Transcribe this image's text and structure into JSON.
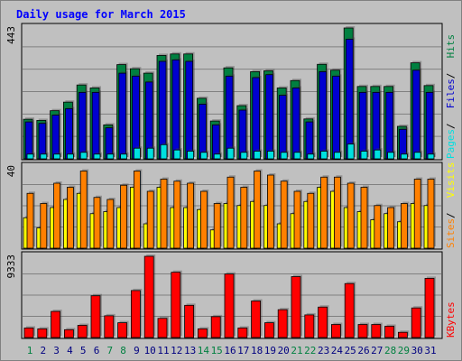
{
  "chart_data": {
    "type": "bar",
    "title": "Daily usage for March 2015",
    "days": [
      "1",
      "2",
      "3",
      "4",
      "5",
      "6",
      "7",
      "8",
      "9",
      "10",
      "11",
      "12",
      "13",
      "14",
      "15",
      "16",
      "17",
      "18",
      "19",
      "20",
      "21",
      "22",
      "23",
      "24",
      "25",
      "26",
      "27",
      "28",
      "29",
      "30",
      "31"
    ],
    "weekend_days": [
      1,
      7,
      8,
      14,
      15,
      21,
      22,
      28,
      29
    ],
    "panels": [
      {
        "id": "hits",
        "max_label": "443",
        "ymax": 443,
        "legend": [
          {
            "label": "Pages",
            "color": "#00e0e0"
          },
          {
            "label": "Files",
            "color": "#0000d0"
          },
          {
            "label": "Hits",
            "color": "#008040"
          }
        ],
        "series": [
          {
            "name": "Hits",
            "color": "#008040",
            "values": [
              134,
              130,
              163,
              192,
              250,
              240,
              115,
              319,
              305,
              290,
              350,
              355,
              355,
              205,
              128,
              308,
              180,
              295,
              298,
              240,
              265,
              135,
              320,
              300,
              443,
              245,
              245,
              245,
              110,
              325,
              248
            ]
          },
          {
            "name": "Files",
            "color": "#0000d0",
            "values": [
              125,
              120,
              148,
              170,
              225,
              225,
              105,
              290,
              280,
              260,
              330,
              335,
              330,
              185,
              115,
              280,
              165,
              275,
              285,
              215,
              240,
              125,
              295,
              280,
              405,
              225,
              225,
              225,
              100,
              300,
              225
            ]
          },
          {
            "name": "Pages",
            "color": "#00e0e0",
            "values": [
              16,
              16,
              16,
              16,
              22,
              16,
              16,
              16,
              36,
              36,
              48,
              30,
              26,
              22,
              16,
              36,
              22,
              26,
              26,
              22,
              22,
              16,
              26,
              22,
              50,
              26,
              30,
              22,
              16,
              22,
              16
            ]
          }
        ]
      },
      {
        "id": "visits",
        "max_label": "40",
        "ymax": 40,
        "legend": [
          {
            "label": "Sites",
            "color": "#ff8000"
          },
          {
            "label": "Visits",
            "color": "#ffff00"
          }
        ],
        "series": [
          {
            "name": "Visits",
            "color": "#ffff00",
            "values": [
              15,
              10,
              20,
              24,
              27,
              17,
              18,
              20,
              30,
              12,
              30,
              20,
              20,
              19,
              9,
              22,
              21,
              23,
              21,
              12,
              17,
              23,
              30,
              28,
              20,
              18,
              14,
              17,
              13,
              22,
              21
            ]
          },
          {
            "name": "Sites",
            "color": "#ff8000",
            "values": [
              27,
              22,
              32,
              30,
              38,
              25,
              24,
              31,
              38,
              28,
              34,
              33,
              32,
              28,
              22,
              35,
              30,
              38,
              36,
              33,
              28,
              27,
              35,
              35,
              32,
              30,
              21,
              20,
              22,
              34,
              34
            ]
          }
        ]
      },
      {
        "id": "kbytes",
        "max_label": "9333",
        "ymax": 9333,
        "legend": [
          {
            "label": "KBytes",
            "color": "#ff0000"
          }
        ],
        "series": [
          {
            "name": "KBytes",
            "color": "#ff0000",
            "values": [
              1100,
              1000,
              3000,
              900,
              1400,
              4800,
              2500,
              1700,
              5400,
              9333,
              2200,
              7500,
              3700,
              1000,
              2400,
              7300,
              1100,
              4200,
              1700,
              3200,
              7000,
              2600,
              3500,
              1500,
              6200,
              1500,
              1500,
              1300,
              600,
              3400,
              6800
            ]
          }
        ]
      }
    ]
  }
}
